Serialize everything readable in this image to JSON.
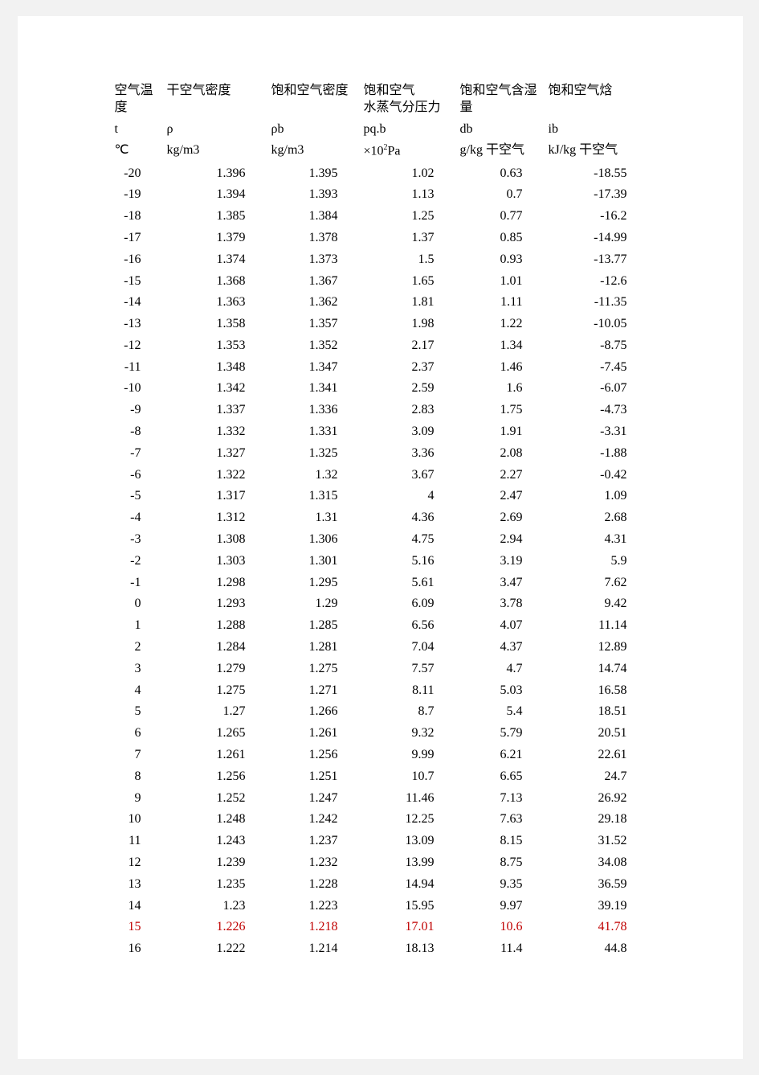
{
  "table": {
    "headers": {
      "h1": "空气温度",
      "h2": "干空气密度",
      "h3": "饱和空气密度",
      "h4a": "饱和空气",
      "h4b": "水蒸气分压力",
      "h5": "饱和空气含湿量",
      "h6": "饱和空气焓"
    },
    "symbols": {
      "s1": "t",
      "s2": "ρ",
      "s3": "ρb",
      "s4": "pq.b",
      "s5": "db",
      "s6": "ib"
    },
    "units": {
      "u1": "℃",
      "u2": "kg/m3",
      "u3": "kg/m3",
      "u4_prefix": "×10",
      "u4_sup": "2",
      "u4_suffix": "Pa",
      "u5": "g/kg 干空气",
      "u6": "kJ/kg 干空气"
    },
    "highlight_row_index": 35,
    "highlight_color": "#c00000",
    "rows": [
      [
        "-20",
        "1.396",
        "1.395",
        "1.02",
        "0.63",
        "-18.55"
      ],
      [
        "-19",
        "1.394",
        "1.393",
        "1.13",
        "0.7",
        "-17.39"
      ],
      [
        "-18",
        "1.385",
        "1.384",
        "1.25",
        "0.77",
        "-16.2"
      ],
      [
        "-17",
        "1.379",
        "1.378",
        "1.37",
        "0.85",
        "-14.99"
      ],
      [
        "-16",
        "1.374",
        "1.373",
        "1.5",
        "0.93",
        "-13.77"
      ],
      [
        "-15",
        "1.368",
        "1.367",
        "1.65",
        "1.01",
        "-12.6"
      ],
      [
        "-14",
        "1.363",
        "1.362",
        "1.81",
        "1.11",
        "-11.35"
      ],
      [
        "-13",
        "1.358",
        "1.357",
        "1.98",
        "1.22",
        "-10.05"
      ],
      [
        "-12",
        "1.353",
        "1.352",
        "2.17",
        "1.34",
        "-8.75"
      ],
      [
        "-11",
        "1.348",
        "1.347",
        "2.37",
        "1.46",
        "-7.45"
      ],
      [
        "-10",
        "1.342",
        "1.341",
        "2.59",
        "1.6",
        "-6.07"
      ],
      [
        "-9",
        "1.337",
        "1.336",
        "2.83",
        "1.75",
        "-4.73"
      ],
      [
        "-8",
        "1.332",
        "1.331",
        "3.09",
        "1.91",
        "-3.31"
      ],
      [
        "-7",
        "1.327",
        "1.325",
        "3.36",
        "2.08",
        "-1.88"
      ],
      [
        "-6",
        "1.322",
        "1.32",
        "3.67",
        "2.27",
        "-0.42"
      ],
      [
        "-5",
        "1.317",
        "1.315",
        "4",
        "2.47",
        "1.09"
      ],
      [
        "-4",
        "1.312",
        "1.31",
        "4.36",
        "2.69",
        "2.68"
      ],
      [
        "-3",
        "1.308",
        "1.306",
        "4.75",
        "2.94",
        "4.31"
      ],
      [
        "-2",
        "1.303",
        "1.301",
        "5.16",
        "3.19",
        "5.9"
      ],
      [
        "-1",
        "1.298",
        "1.295",
        "5.61",
        "3.47",
        "7.62"
      ],
      [
        "0",
        "1.293",
        "1.29",
        "6.09",
        "3.78",
        "9.42"
      ],
      [
        "1",
        "1.288",
        "1.285",
        "6.56",
        "4.07",
        "11.14"
      ],
      [
        "2",
        "1.284",
        "1.281",
        "7.04",
        "4.37",
        "12.89"
      ],
      [
        "3",
        "1.279",
        "1.275",
        "7.57",
        "4.7",
        "14.74"
      ],
      [
        "4",
        "1.275",
        "1.271",
        "8.11",
        "5.03",
        "16.58"
      ],
      [
        "5",
        "1.27",
        "1.266",
        "8.7",
        "5.4",
        "18.51"
      ],
      [
        "6",
        "1.265",
        "1.261",
        "9.32",
        "5.79",
        "20.51"
      ],
      [
        "7",
        "1.261",
        "1.256",
        "9.99",
        "6.21",
        "22.61"
      ],
      [
        "8",
        "1.256",
        "1.251",
        "10.7",
        "6.65",
        "24.7"
      ],
      [
        "9",
        "1.252",
        "1.247",
        "11.46",
        "7.13",
        "26.92"
      ],
      [
        "10",
        "1.248",
        "1.242",
        "12.25",
        "7.63",
        "29.18"
      ],
      [
        "11",
        "1.243",
        "1.237",
        "13.09",
        "8.15",
        "31.52"
      ],
      [
        "12",
        "1.239",
        "1.232",
        "13.99",
        "8.75",
        "34.08"
      ],
      [
        "13",
        "1.235",
        "1.228",
        "14.94",
        "9.35",
        "36.59"
      ],
      [
        "14",
        "1.23",
        "1.223",
        "15.95",
        "9.97",
        "39.19"
      ],
      [
        "15",
        "1.226",
        "1.218",
        "17.01",
        "10.6",
        "41.78"
      ],
      [
        "16",
        "1.222",
        "1.214",
        "18.13",
        "11.4",
        "44.8"
      ]
    ]
  }
}
